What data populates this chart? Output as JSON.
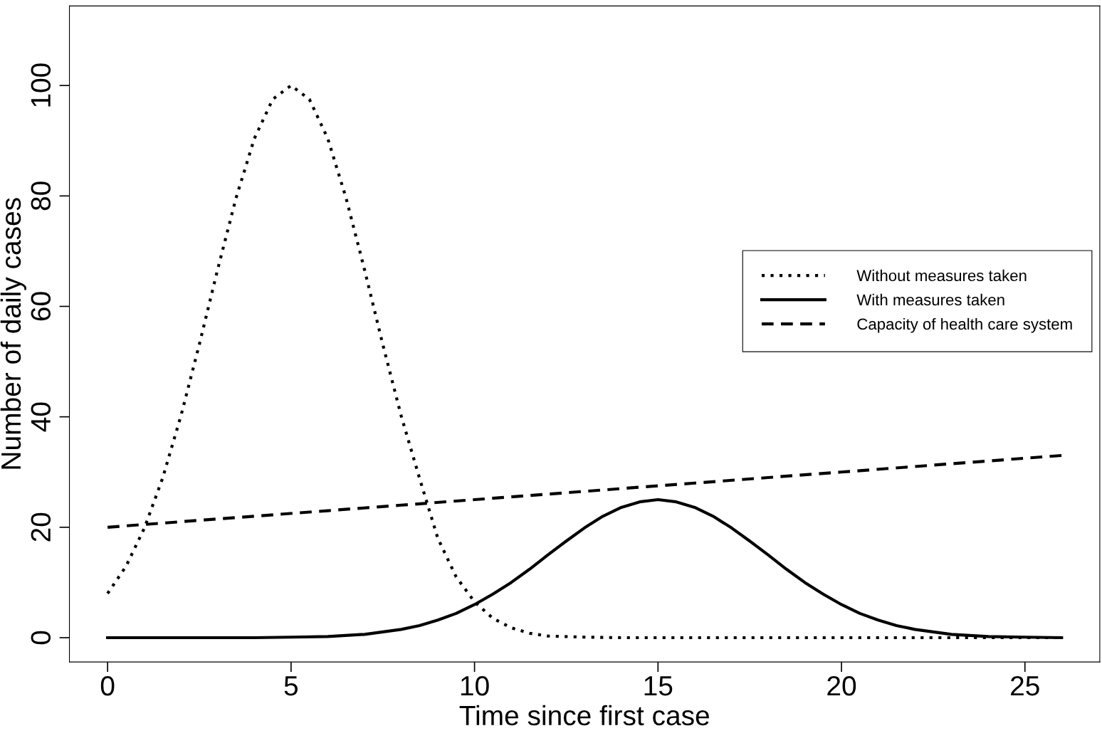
{
  "chart_data": {
    "type": "line",
    "xlabel": "Time since first case",
    "ylabel": "Number of daily cases",
    "xlim": [
      -1.04,
      27.04
    ],
    "ylim": [
      -4.4,
      114.4
    ],
    "xticks": [
      0,
      5,
      10,
      15,
      20,
      25
    ],
    "yticks": [
      0,
      20,
      40,
      60,
      80,
      100
    ],
    "grid": false,
    "legend": "right",
    "marker": "none",
    "series": [
      {
        "name": "Without measures taken",
        "color": "#000000",
        "line_style": "dotted",
        "x": [
          0,
          0.5,
          1,
          1.5,
          2,
          2.5,
          3,
          3.5,
          4,
          4.5,
          5,
          5.5,
          6,
          6.5,
          7,
          7.5,
          8,
          8.5,
          9,
          9.5,
          10,
          10.5,
          11,
          11.5,
          12,
          13,
          14,
          16,
          18,
          20,
          22,
          24,
          26
        ],
        "values": [
          8,
          12.9,
          19.8,
          28.9,
          40.2,
          53.1,
          66.7,
          79.6,
          90.4,
          97.5,
          100,
          97.5,
          90.4,
          79.6,
          66.7,
          53.1,
          40.2,
          28.9,
          18,
          11,
          6.5,
          3.5,
          1.8,
          0.8,
          0.3,
          0.1,
          0,
          0,
          0,
          0,
          0,
          0,
          0
        ]
      },
      {
        "name": "With measures taken",
        "color": "#000000",
        "line_style": "solid",
        "x": [
          0,
          2,
          4,
          5,
          6,
          7,
          8,
          8.5,
          9,
          9.5,
          10,
          10.5,
          11,
          11.5,
          12,
          12.5,
          13,
          13.5,
          14,
          14.5,
          15,
          15.5,
          16,
          16.5,
          17,
          17.5,
          18,
          18.5,
          19,
          19.5,
          20,
          20.5,
          21,
          21.5,
          22,
          23,
          24,
          25,
          26
        ],
        "values": [
          0,
          0,
          0,
          0.1,
          0.2,
          0.6,
          1.5,
          2.2,
          3.2,
          4.4,
          6,
          7.9,
          10,
          12.4,
          15,
          17.5,
          19.9,
          22,
          23.6,
          24.6,
          25,
          24.6,
          23.6,
          22,
          19.9,
          17.5,
          15,
          12.4,
          10,
          7.9,
          6,
          4.4,
          3.2,
          2.2,
          1.5,
          0.6,
          0.2,
          0.1,
          0
        ]
      },
      {
        "name": "Capacity of health care system",
        "color": "#000000",
        "line_style": "dashed",
        "x": [
          0,
          2,
          4,
          6,
          8,
          10,
          12,
          14,
          16,
          18,
          20,
          22,
          24,
          26
        ],
        "values": [
          20,
          21,
          22,
          23,
          24,
          25,
          26,
          27,
          28,
          29,
          30,
          31,
          32,
          33
        ]
      }
    ]
  }
}
